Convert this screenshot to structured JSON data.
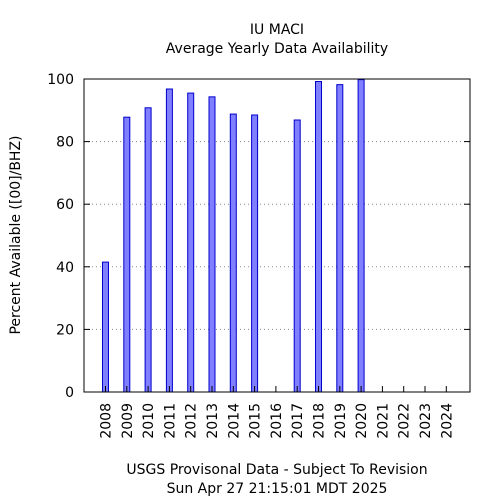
{
  "chart_data": {
    "type": "bar",
    "title": "IU MACI",
    "subtitle": "Average Yearly Data Availability",
    "xlabel": "USGS Provisonal Data - Subject To Revision",
    "footer": "Sun Apr 27 21:15:01 MDT 2025",
    "ylabel": "Percent Available ([00]/BHZ)",
    "ylim": [
      0,
      100
    ],
    "yticks": [
      0,
      20,
      40,
      60,
      80,
      100
    ],
    "grid": "horizontal dotted",
    "categories": [
      "2008",
      "2009",
      "2010",
      "2011",
      "2012",
      "2013",
      "2014",
      "2015",
      "2016",
      "2017",
      "2018",
      "2019",
      "2020",
      "2021",
      "2022",
      "2023",
      "2024"
    ],
    "values": [
      41.5,
      87.8,
      90.8,
      96.8,
      95.5,
      94.3,
      88.8,
      88.5,
      null,
      86.9,
      99.2,
      98.2,
      99.8,
      null,
      null,
      null,
      null
    ],
    "bar_color": "#7f7fff",
    "bar_edge_color": "#0000cc"
  }
}
